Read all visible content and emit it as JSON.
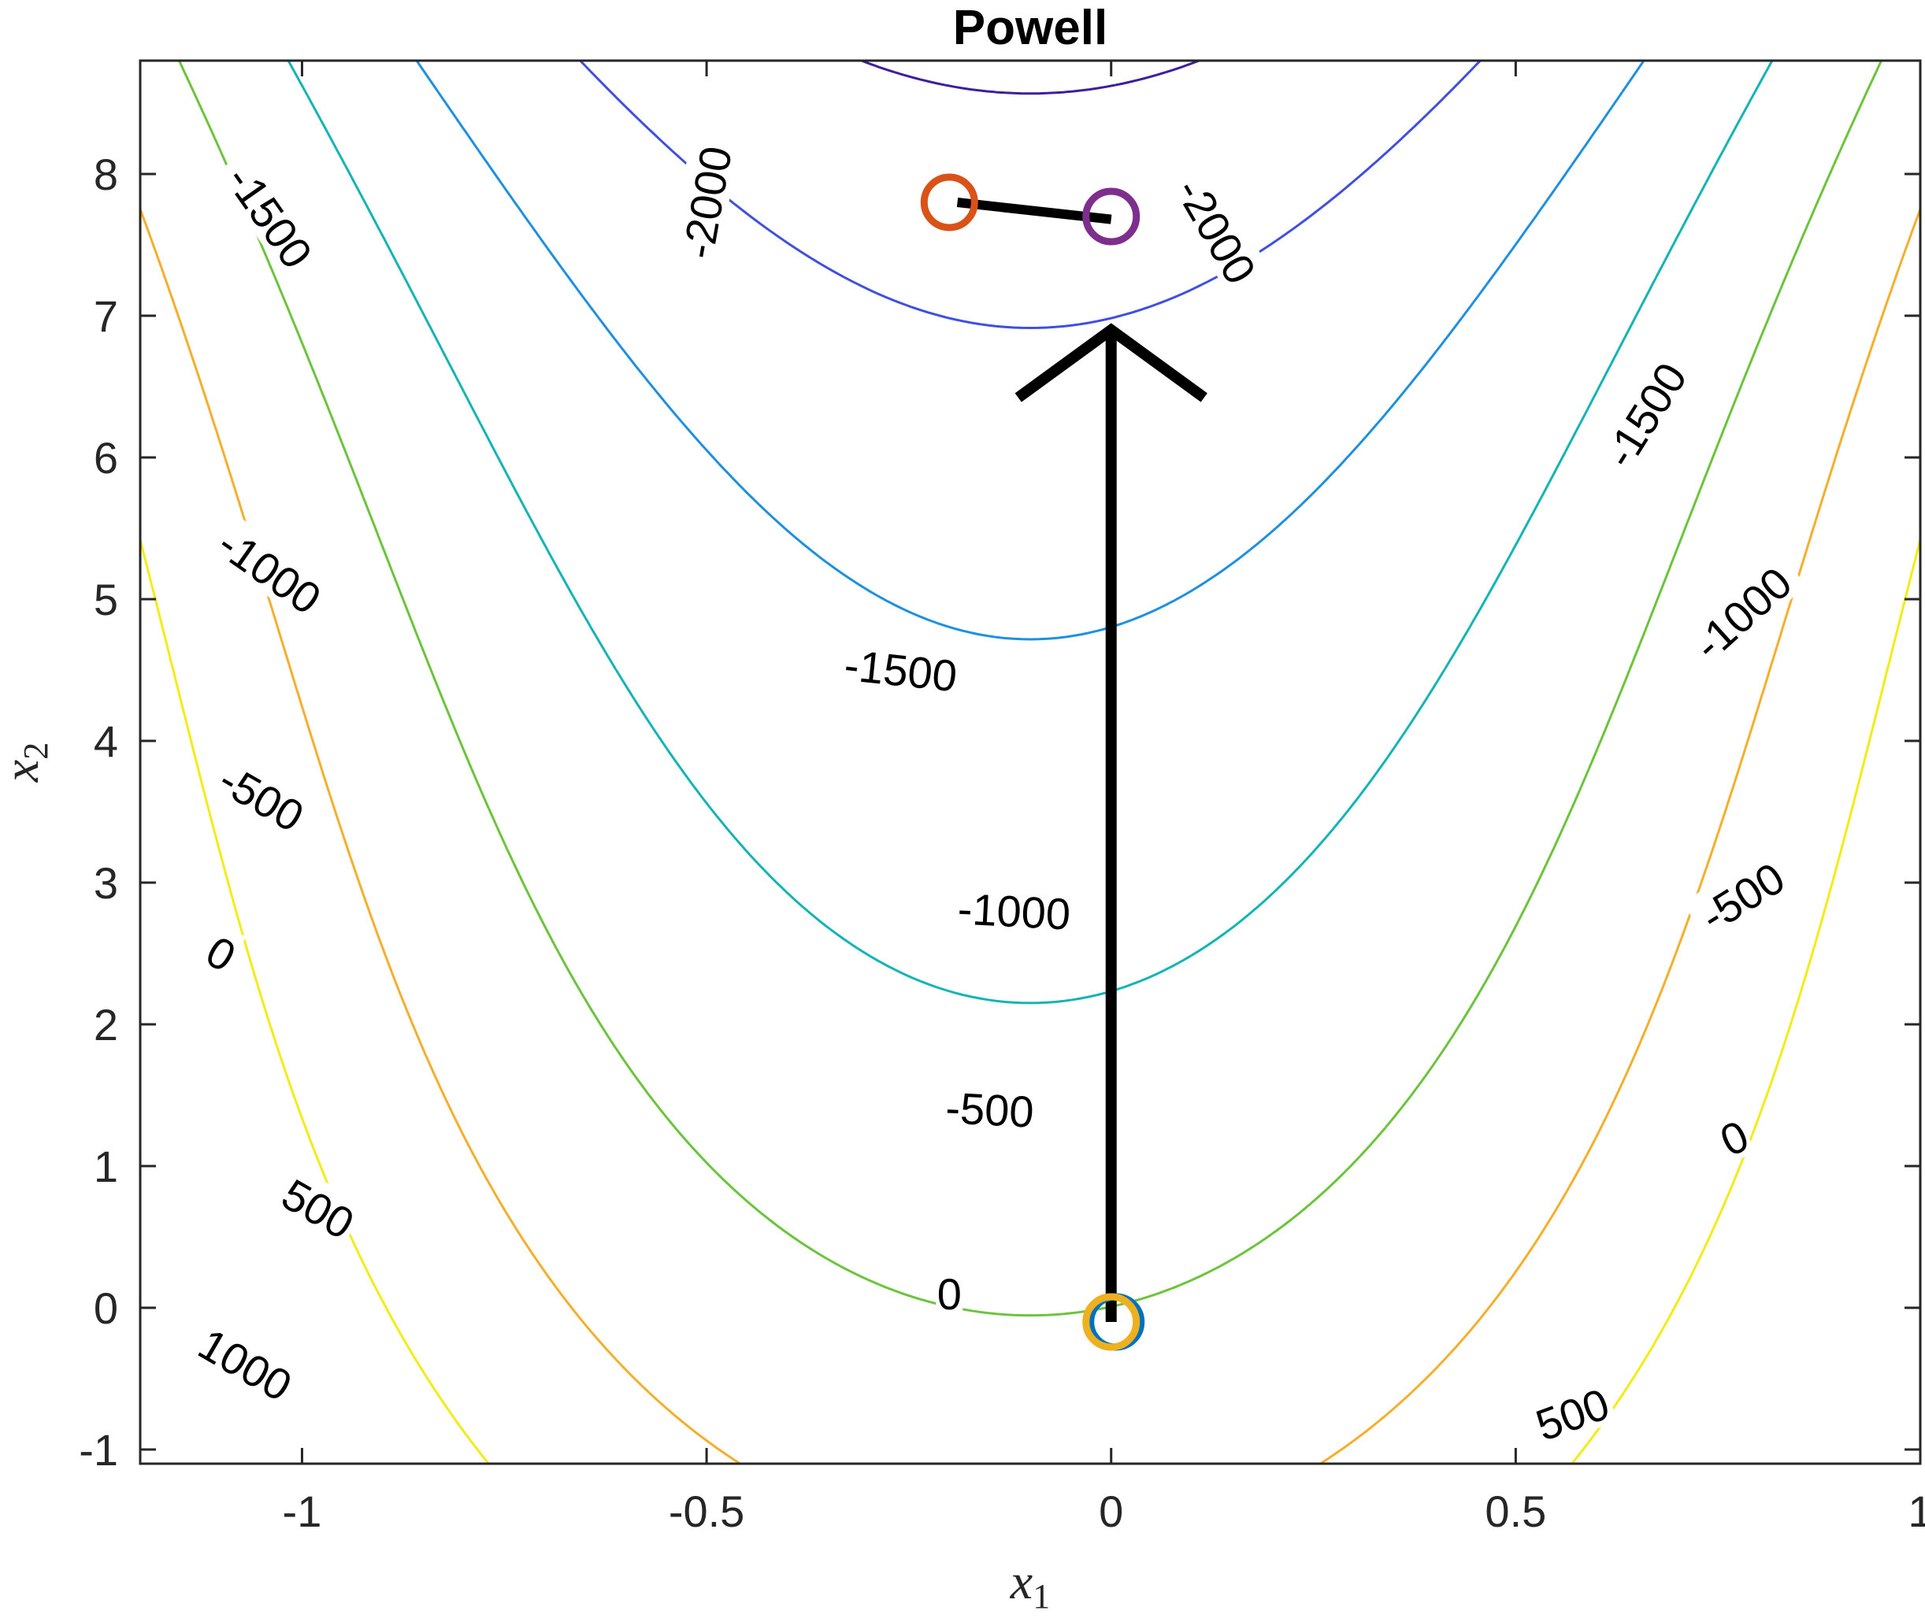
{
  "chart_data": {
    "type": "contour",
    "title": "Powell",
    "xlabel": "x1",
    "ylabel": "x2",
    "xlim": [
      -1.2,
      1.0
    ],
    "ylim": [
      -1.1,
      8.8
    ],
    "x_ticks": [
      -1,
      -0.5,
      0,
      0.5,
      1
    ],
    "x_tick_labels": [
      "-1",
      "-0.5",
      "0",
      "0.5",
      "1"
    ],
    "y_ticks": [
      -1,
      0,
      1,
      2,
      3,
      4,
      5,
      6,
      7,
      8
    ],
    "y_tick_labels": [
      "-1",
      "0",
      "1",
      "2",
      "3",
      "4",
      "5",
      "6",
      "7",
      "8"
    ],
    "grid": false,
    "contour_levels": [
      {
        "level": -2000,
        "color": "#3d1f9e"
      },
      {
        "level": -1500,
        "color": "#3f4fe0"
      },
      {
        "level": -1000,
        "color": "#1f8fe0"
      },
      {
        "level": -500,
        "color": "#15b4b4"
      },
      {
        "level": 0,
        "color": "#6cc43c"
      },
      {
        "level": 500,
        "color": "#f6ae2d"
      },
      {
        "level": 1000,
        "color": "#f2ec18"
      }
    ],
    "contour_labels": [
      {
        "text": "-2000",
        "x": -0.5,
        "y": 7.8,
        "angle": -80
      },
      {
        "text": "-2000",
        "x": 0.13,
        "y": 7.6,
        "angle": 60
      },
      {
        "text": "-1500",
        "x": -1.04,
        "y": 7.7,
        "angle": 55
      },
      {
        "text": "-1500",
        "x": 0.66,
        "y": 6.3,
        "angle": -58
      },
      {
        "text": "-1500",
        "x": -0.26,
        "y": 4.5,
        "angle": 6
      },
      {
        "text": "-1000",
        "x": -1.04,
        "y": 5.2,
        "angle": 35
      },
      {
        "text": "-1000",
        "x": 0.78,
        "y": 4.9,
        "angle": -42
      },
      {
        "text": "-1000",
        "x": -0.12,
        "y": 2.8,
        "angle": 3
      },
      {
        "text": "-500",
        "x": -1.05,
        "y": 3.6,
        "angle": 30
      },
      {
        "text": "-500",
        "x": 0.78,
        "y": 2.9,
        "angle": -32
      },
      {
        "text": "-500",
        "x": -0.15,
        "y": 1.4,
        "angle": 3
      },
      {
        "text": "0",
        "x": -1.1,
        "y": 2.5,
        "angle": 30
      },
      {
        "text": "0",
        "x": 0.77,
        "y": 1.2,
        "angle": -25
      },
      {
        "text": "0",
        "x": -0.2,
        "y": 0.1,
        "angle": 0
      },
      {
        "text": "500",
        "x": -0.98,
        "y": 0.7,
        "angle": 30
      },
      {
        "text": "500",
        "x": 0.57,
        "y": -0.75,
        "angle": -20
      },
      {
        "text": "1000",
        "x": -1.07,
        "y": -0.4,
        "angle": 30
      }
    ],
    "iterates": [
      {
        "x": 0.0,
        "y": -0.1,
        "color": "#0072bd"
      },
      {
        "x": 0.0,
        "y": -0.1,
        "color": "#edb120"
      },
      {
        "x": -0.2,
        "y": 7.8,
        "color": "#d95319"
      },
      {
        "x": 0.0,
        "y": 7.7,
        "color": "#7e2f8e"
      }
    ],
    "path": [
      {
        "x": 0.0,
        "y": -0.1
      },
      {
        "x": 0.0,
        "y": 6.9
      },
      {
        "x": -0.19,
        "y": 7.8
      },
      {
        "x": 0.0,
        "y": 7.68
      }
    ]
  }
}
